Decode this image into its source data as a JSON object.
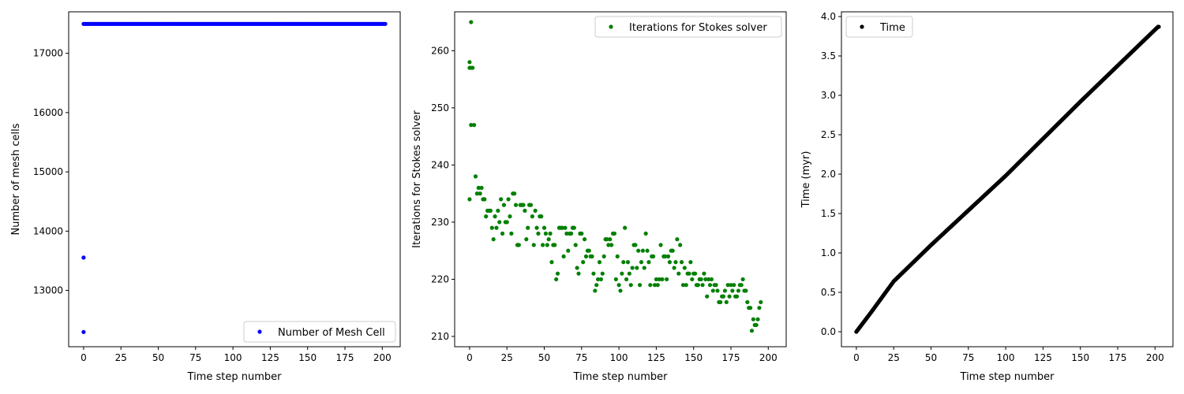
{
  "chart_data": [
    {
      "type": "scatter",
      "xlabel": "Time step number",
      "ylabel": "Number of mesh cells",
      "xlim": [
        -10,
        212
      ],
      "ylim": [
        12050,
        17700
      ],
      "xticks": [
        0,
        25,
        50,
        75,
        100,
        125,
        150,
        175,
        200
      ],
      "yticks": [
        13000,
        14000,
        15000,
        16000,
        17000
      ],
      "grid": false,
      "legend_loc": "lower-right",
      "series": [
        {
          "name": "Number of Mesh Cell",
          "color": "#0000ff",
          "pattern": "constant",
          "x_start": 0,
          "x_end": 202,
          "value": 17496,
          "extra_points": [
            [
              0,
              13554
            ],
            [
              0,
              12298
            ]
          ]
        }
      ]
    },
    {
      "type": "scatter",
      "xlabel": "Time step number",
      "ylabel": "Iterations for Stokes solver",
      "xlim": [
        -10,
        212
      ],
      "ylim": [
        208.2,
        266.8
      ],
      "xticks": [
        0,
        25,
        50,
        75,
        100,
        125,
        150,
        175,
        200
      ],
      "yticks": [
        210,
        220,
        230,
        240,
        250,
        260
      ],
      "grid": false,
      "legend_loc": "upper-right",
      "series": [
        {
          "name": "Iterations for Stokes solver",
          "color": "#008000",
          "pattern": "points",
          "points": [
            [
              0,
              234
            ],
            [
              0,
              257
            ],
            [
              0,
              258
            ],
            [
              1,
              265
            ],
            [
              1,
              247
            ],
            [
              1,
              257
            ],
            [
              2,
              257
            ],
            [
              3,
              247
            ],
            [
              4,
              238
            ],
            [
              5,
              235
            ],
            [
              6,
              236
            ],
            [
              7,
              235
            ],
            [
              8,
              236
            ],
            [
              9,
              234
            ],
            [
              10,
              234
            ],
            [
              11,
              231
            ],
            [
              12,
              232
            ],
            [
              13,
              232
            ],
            [
              14,
              232
            ],
            [
              15,
              229
            ],
            [
              16,
              227
            ],
            [
              17,
              231
            ],
            [
              18,
              229
            ],
            [
              19,
              232
            ],
            [
              20,
              230
            ],
            [
              21,
              234
            ],
            [
              22,
              228
            ],
            [
              23,
              233
            ],
            [
              24,
              230
            ],
            [
              25,
              230
            ],
            [
              26,
              234
            ],
            [
              27,
              231
            ],
            [
              28,
              228
            ],
            [
              29,
              235
            ],
            [
              30,
              235
            ],
            [
              31,
              233
            ],
            [
              32,
              226
            ],
            [
              33,
              226
            ],
            [
              34,
              233
            ],
            [
              35,
              233
            ],
            [
              36,
              233
            ],
            [
              37,
              232
            ],
            [
              38,
              227
            ],
            [
              39,
              229
            ],
            [
              40,
              233
            ],
            [
              41,
              233
            ],
            [
              42,
              231
            ],
            [
              43,
              226
            ],
            [
              44,
              232
            ],
            [
              45,
              229
            ],
            [
              46,
              228
            ],
            [
              47,
              231
            ],
            [
              48,
              231
            ],
            [
              49,
              226
            ],
            [
              50,
              229
            ],
            [
              51,
              228
            ],
            [
              52,
              226
            ],
            [
              53,
              227
            ],
            [
              54,
              228
            ],
            [
              55,
              223
            ],
            [
              56,
              226
            ],
            [
              57,
              226
            ],
            [
              58,
              220
            ],
            [
              59,
              221
            ],
            [
              60,
              229
            ],
            [
              61,
              229
            ],
            [
              62,
              229
            ],
            [
              63,
              224
            ],
            [
              64,
              229
            ],
            [
              65,
              228
            ],
            [
              66,
              225
            ],
            [
              67,
              228
            ],
            [
              68,
              228
            ],
            [
              69,
              229
            ],
            [
              70,
              229
            ],
            [
              71,
              226
            ],
            [
              72,
              222
            ],
            [
              73,
              221
            ],
            [
              74,
              228
            ],
            [
              75,
              228
            ],
            [
              76,
              223
            ],
            [
              77,
              227
            ],
            [
              78,
              224
            ],
            [
              79,
              225
            ],
            [
              80,
              225
            ],
            [
              81,
              224
            ],
            [
              82,
              224
            ],
            [
              83,
              221
            ],
            [
              84,
              218
            ],
            [
              85,
              219
            ],
            [
              86,
              220
            ],
            [
              87,
              223
            ],
            [
              88,
              220
            ],
            [
              89,
              221
            ],
            [
              90,
              224
            ],
            [
              91,
              227
            ],
            [
              92,
              227
            ],
            [
              93,
              226
            ],
            [
              94,
              227
            ],
            [
              95,
              226
            ],
            [
              96,
              228
            ],
            [
              97,
              228
            ],
            [
              98,
              220
            ],
            [
              99,
              224
            ],
            [
              100,
              219
            ],
            [
              101,
              218
            ],
            [
              102,
              221
            ],
            [
              103,
              223
            ],
            [
              104,
              229
            ],
            [
              105,
              220
            ],
            [
              106,
              223
            ],
            [
              107,
              221
            ],
            [
              108,
              219
            ],
            [
              109,
              222
            ],
            [
              110,
              226
            ],
            [
              111,
              226
            ],
            [
              112,
              222
            ],
            [
              113,
              225
            ],
            [
              114,
              219
            ],
            [
              115,
              223
            ],
            [
              116,
              225
            ],
            [
              117,
              222
            ],
            [
              118,
              228
            ],
            [
              119,
              225
            ],
            [
              120,
              223
            ],
            [
              121,
              219
            ],
            [
              122,
              224
            ],
            [
              123,
              224
            ],
            [
              124,
              219
            ],
            [
              125,
              220
            ],
            [
              126,
              219
            ],
            [
              127,
              220
            ],
            [
              128,
              226
            ],
            [
              129,
              220
            ],
            [
              130,
              224
            ],
            [
              131,
              224
            ],
            [
              132,
              220
            ],
            [
              133,
              224
            ],
            [
              134,
              223
            ],
            [
              135,
              225
            ],
            [
              136,
              225
            ],
            [
              137,
              222
            ],
            [
              138,
              223
            ],
            [
              139,
              227
            ],
            [
              140,
              221
            ],
            [
              141,
              226
            ],
            [
              142,
              223
            ],
            [
              143,
              219
            ],
            [
              144,
              222
            ],
            [
              145,
              219
            ],
            [
              146,
              221
            ],
            [
              147,
              221
            ],
            [
              148,
              223
            ],
            [
              149,
              220
            ],
            [
              150,
              221
            ],
            [
              151,
              221
            ],
            [
              152,
              219
            ],
            [
              153,
              219
            ],
            [
              154,
              220
            ],
            [
              155,
              220
            ],
            [
              156,
              219
            ],
            [
              157,
              221
            ],
            [
              158,
              220
            ],
            [
              159,
              217
            ],
            [
              160,
              220
            ],
            [
              161,
              219
            ],
            [
              162,
              220
            ],
            [
              163,
              218
            ],
            [
              164,
              219
            ],
            [
              165,
              219
            ],
            [
              166,
              218
            ],
            [
              167,
              216
            ],
            [
              168,
              216
            ],
            [
              169,
              217
            ],
            [
              170,
              217
            ],
            [
              171,
              218
            ],
            [
              172,
              216
            ],
            [
              173,
              219
            ],
            [
              174,
              217
            ],
            [
              175,
              219
            ],
            [
              176,
              218
            ],
            [
              177,
              219
            ],
            [
              178,
              217
            ],
            [
              179,
              217
            ],
            [
              180,
              218
            ],
            [
              181,
              219
            ],
            [
              182,
              219
            ],
            [
              183,
              220
            ],
            [
              184,
              218
            ],
            [
              185,
              218
            ],
            [
              186,
              216
            ],
            [
              187,
              215
            ],
            [
              188,
              215
            ],
            [
              189,
              211
            ],
            [
              190,
              213
            ],
            [
              191,
              212
            ],
            [
              192,
              212
            ],
            [
              193,
              213
            ],
            [
              194,
              215
            ],
            [
              195,
              216
            ]
          ]
        }
      ]
    },
    {
      "type": "scatter",
      "xlabel": "Time step number",
      "ylabel": "Time (myr)",
      "xlim": [
        -10,
        212
      ],
      "ylim": [
        -0.19,
        4.06
      ],
      "xticks": [
        0,
        25,
        50,
        75,
        100,
        125,
        150,
        175,
        200
      ],
      "yticks": [
        0.0,
        0.5,
        1.0,
        1.5,
        2.0,
        2.5,
        3.0,
        3.5,
        4.0
      ],
      "grid": false,
      "legend_loc": "upper-left",
      "series": [
        {
          "name": "Time",
          "color": "#000000",
          "pattern": "curve",
          "x_start": 0,
          "x_end": 202,
          "curve_keypoints": [
            [
              0,
              0.0
            ],
            [
              10,
              0.25
            ],
            [
              25,
              0.64
            ],
            [
              50,
              1.1
            ],
            [
              100,
              1.98
            ],
            [
              150,
              2.92
            ],
            [
              202,
              3.87
            ]
          ]
        }
      ]
    }
  ]
}
